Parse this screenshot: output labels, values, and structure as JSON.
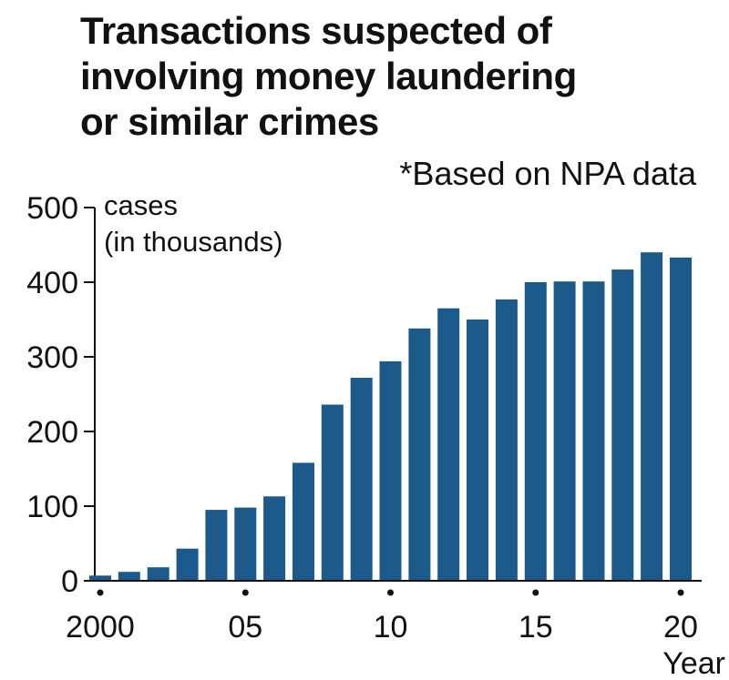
{
  "chart_data": {
    "type": "bar",
    "title_lines": [
      "Transactions suspected of",
      "involving money laundering",
      "or similar crimes"
    ],
    "source_note": "*Based on NPA data",
    "ylabel_lines": [
      "cases",
      "(in thousands)"
    ],
    "xlabel": "Year",
    "categories": [
      "2000",
      "2001",
      "2002",
      "2003",
      "2004",
      "2005",
      "2006",
      "2007",
      "2008",
      "2009",
      "2010",
      "2011",
      "2012",
      "2013",
      "2014",
      "2015",
      "2016",
      "2017",
      "2018",
      "2019",
      "2020"
    ],
    "values": [
      7,
      12,
      18,
      43,
      95,
      98,
      113,
      158,
      236,
      272,
      294,
      338,
      365,
      350,
      377,
      400,
      401,
      401,
      417,
      440,
      433
    ],
    "x_tick_labels": [
      {
        "index": 0,
        "label": "2000"
      },
      {
        "index": 5,
        "label": "05"
      },
      {
        "index": 10,
        "label": "10"
      },
      {
        "index": 15,
        "label": "15"
      },
      {
        "index": 20,
        "label": "20"
      }
    ],
    "y_ticks": [
      0,
      100,
      200,
      300,
      400,
      500
    ],
    "ylim": [
      0,
      500
    ],
    "grid": false,
    "bar_color": "#1b5a8a"
  }
}
